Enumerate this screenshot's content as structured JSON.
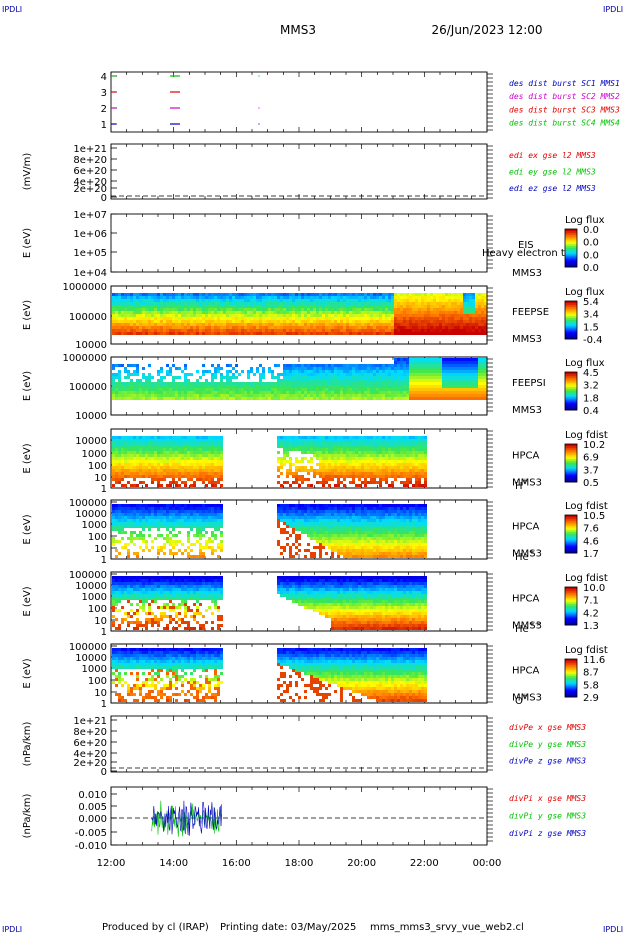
{
  "header": {
    "corner_label": "IPDLI",
    "spacecraft": "MMS3",
    "datetime": "26/Jun/2023 12:00"
  },
  "footer": {
    "produced_by": "Produced by cl (IRAP)",
    "printing_date": "Printing date: 03/May/2025",
    "script_name": "mms_mms3_srvy_vue_web2.cl"
  },
  "colors": {
    "red": "#e00000",
    "green": "#00c000",
    "blue": "#0000c0",
    "magenta": "#d000d0",
    "dashed_line": "#000000"
  },
  "chart_data": {
    "type": "heatmap",
    "x_axis": {
      "range": [
        "12:00",
        "00:00"
      ],
      "tick_labels": [
        "12:00",
        "14:00",
        "16:00",
        "18:00",
        "20:00",
        "22:00",
        "00:00"
      ]
    },
    "panels": [
      {
        "id": "burst",
        "type": "scatter",
        "ylabel": "",
        "ytick_labels": [
          "4",
          "3",
          "2",
          "1"
        ],
        "legend": [
          {
            "text": "des dist burst SC1 MMS1",
            "color": "#0000c0"
          },
          {
            "text": "des dist burst SC2 MMS2",
            "color": "#d000d0"
          },
          {
            "text": "des dist burst SC3 MMS3",
            "color": "#e00000"
          },
          {
            "text": "des dist burst SC4 MMS4",
            "color": "#00c000"
          }
        ]
      },
      {
        "id": "edi",
        "type": "line",
        "ylabel": "(mV/m)",
        "ytick_labels": [
          "1e+21",
          "8e+20",
          "6e+20",
          "4e+20",
          "2e+20",
          "0"
        ],
        "legend": [
          {
            "text": "edi ex gse l2 MMS3",
            "color": "#e00000"
          },
          {
            "text": "edi ey gse l2 MMS3",
            "color": "#00c000"
          },
          {
            "text": "edi ez gse l2 MMS3",
            "color": "#0000c0"
          }
        ]
      },
      {
        "id": "eis",
        "type": "heatmap",
        "ylabel": "E (eV)",
        "ytick_labels": [
          "1e+07",
          "1e+06",
          "1e+05",
          "1e+04"
        ],
        "instrument": "EIS",
        "spacecraft": "MMS3",
        "overlay_text": "Heavy electron to",
        "colorbar_title": "Log flux",
        "colorbar_ticks": [
          "0.0",
          "0.0",
          "0.0",
          "0.0"
        ]
      },
      {
        "id": "feepse",
        "type": "heatmap",
        "ylabel": "E (eV)",
        "ytick_labels": [
          "1000000",
          "100000",
          "10000"
        ],
        "instrument": "FEEPSE",
        "spacecraft": "MMS3",
        "colorbar_title": "Log flux",
        "colorbar_ticks": [
          "5.4",
          "3.4",
          "1.5",
          "-0.4"
        ]
      },
      {
        "id": "feepsi",
        "type": "heatmap",
        "ylabel": "E (eV)",
        "ytick_labels": [
          "1000000",
          "100000",
          "10000"
        ],
        "instrument": "FEEPSI",
        "spacecraft": "MMS3",
        "colorbar_title": "Log flux",
        "colorbar_ticks": [
          "4.5",
          "3.2",
          "1.8",
          "0.4"
        ]
      },
      {
        "id": "hpca_h",
        "type": "heatmap",
        "ylabel": "E (eV)",
        "ytick_labels": [
          "10000",
          "1000",
          "100",
          "10",
          "1"
        ],
        "instrument": "HPCA",
        "spacecraft": "MMS3",
        "species": "H",
        "species_sup": "+",
        "colorbar_title": "Log fdist",
        "colorbar_ticks": [
          "10.2",
          "6.9",
          "3.7",
          "0.5"
        ]
      },
      {
        "id": "hpca_he1",
        "type": "heatmap",
        "ylabel": "E (eV)",
        "ytick_labels": [
          "100000",
          "10000",
          "1000",
          "100",
          "10",
          "1"
        ],
        "instrument": "HPCA",
        "spacecraft": "MMS3",
        "species": "He",
        "species_sup": "+",
        "colorbar_title": "Log fdist",
        "colorbar_ticks": [
          "10.5",
          "7.6",
          "4.6",
          "1.7"
        ]
      },
      {
        "id": "hpca_he2",
        "type": "heatmap",
        "ylabel": "E (eV)",
        "ytick_labels": [
          "100000",
          "10000",
          "1000",
          "100",
          "10",
          "1"
        ],
        "instrument": "HPCA",
        "spacecraft": "MMS3",
        "species": "He",
        "species_sup": "++",
        "colorbar_title": "Log fdist",
        "colorbar_ticks": [
          "10.0",
          "7.1",
          "4.2",
          "1.3"
        ]
      },
      {
        "id": "hpca_o",
        "type": "heatmap",
        "ylabel": "E (eV)",
        "ytick_labels": [
          "100000",
          "10000",
          "1000",
          "100",
          "10",
          "1"
        ],
        "instrument": "HPCA",
        "spacecraft": "MMS3",
        "species": "O",
        "species_sup": "+",
        "colorbar_title": "Log fdist",
        "colorbar_ticks": [
          "11.6",
          "8.7",
          "5.8",
          "2.9"
        ]
      },
      {
        "id": "divpe",
        "type": "line",
        "ylabel": "(nPa/km)",
        "ytick_labels": [
          "1e+21",
          "8e+20",
          "6e+20",
          "4e+20",
          "2e+20",
          "0"
        ],
        "legend": [
          {
            "text": "divPe x gse MMS3",
            "color": "#e00000"
          },
          {
            "text": "divPe y gse MMS3",
            "color": "#00c000"
          },
          {
            "text": "divPe z gse MMS3",
            "color": "#0000c0"
          }
        ]
      },
      {
        "id": "divpi",
        "type": "line",
        "ylabel": "(nPa/km)",
        "ytick_labels": [
          "0.010",
          "0.005",
          "0.000",
          "-0.005",
          "-0.010"
        ],
        "ylim": [
          -0.01,
          0.01
        ],
        "legend": [
          {
            "text": "divPi x gse MMS3",
            "color": "#e00000"
          },
          {
            "text": "divPi y gse MMS3",
            "color": "#00c000"
          },
          {
            "text": "divPi z gse MMS3",
            "color": "#0000c0"
          }
        ]
      }
    ]
  }
}
